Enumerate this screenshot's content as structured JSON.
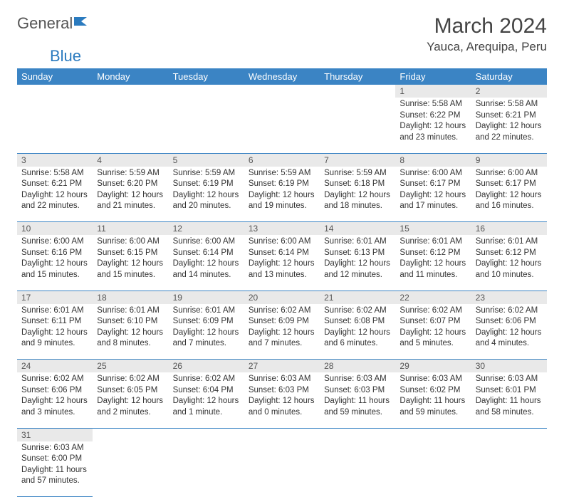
{
  "brand": {
    "part1": "General",
    "part2": "Blue"
  },
  "title": "March 2024",
  "location": "Yauca, Arequipa, Peru",
  "colors": {
    "header_bg": "#3b84c4",
    "header_text": "#ffffff",
    "daynum_bg": "#e9e9e9",
    "row_border": "#3b84c4",
    "logo_blue": "#2b7bbf"
  },
  "weekdays": [
    "Sunday",
    "Monday",
    "Tuesday",
    "Wednesday",
    "Thursday",
    "Friday",
    "Saturday"
  ],
  "weeks": [
    [
      null,
      null,
      null,
      null,
      null,
      {
        "n": "1",
        "sr": "Sunrise: 5:58 AM",
        "ss": "Sunset: 6:22 PM",
        "d1": "Daylight: 12 hours",
        "d2": "and 23 minutes."
      },
      {
        "n": "2",
        "sr": "Sunrise: 5:58 AM",
        "ss": "Sunset: 6:21 PM",
        "d1": "Daylight: 12 hours",
        "d2": "and 22 minutes."
      }
    ],
    [
      {
        "n": "3",
        "sr": "Sunrise: 5:58 AM",
        "ss": "Sunset: 6:21 PM",
        "d1": "Daylight: 12 hours",
        "d2": "and 22 minutes."
      },
      {
        "n": "4",
        "sr": "Sunrise: 5:59 AM",
        "ss": "Sunset: 6:20 PM",
        "d1": "Daylight: 12 hours",
        "d2": "and 21 minutes."
      },
      {
        "n": "5",
        "sr": "Sunrise: 5:59 AM",
        "ss": "Sunset: 6:19 PM",
        "d1": "Daylight: 12 hours",
        "d2": "and 20 minutes."
      },
      {
        "n": "6",
        "sr": "Sunrise: 5:59 AM",
        "ss": "Sunset: 6:19 PM",
        "d1": "Daylight: 12 hours",
        "d2": "and 19 minutes."
      },
      {
        "n": "7",
        "sr": "Sunrise: 5:59 AM",
        "ss": "Sunset: 6:18 PM",
        "d1": "Daylight: 12 hours",
        "d2": "and 18 minutes."
      },
      {
        "n": "8",
        "sr": "Sunrise: 6:00 AM",
        "ss": "Sunset: 6:17 PM",
        "d1": "Daylight: 12 hours",
        "d2": "and 17 minutes."
      },
      {
        "n": "9",
        "sr": "Sunrise: 6:00 AM",
        "ss": "Sunset: 6:17 PM",
        "d1": "Daylight: 12 hours",
        "d2": "and 16 minutes."
      }
    ],
    [
      {
        "n": "10",
        "sr": "Sunrise: 6:00 AM",
        "ss": "Sunset: 6:16 PM",
        "d1": "Daylight: 12 hours",
        "d2": "and 15 minutes."
      },
      {
        "n": "11",
        "sr": "Sunrise: 6:00 AM",
        "ss": "Sunset: 6:15 PM",
        "d1": "Daylight: 12 hours",
        "d2": "and 15 minutes."
      },
      {
        "n": "12",
        "sr": "Sunrise: 6:00 AM",
        "ss": "Sunset: 6:14 PM",
        "d1": "Daylight: 12 hours",
        "d2": "and 14 minutes."
      },
      {
        "n": "13",
        "sr": "Sunrise: 6:00 AM",
        "ss": "Sunset: 6:14 PM",
        "d1": "Daylight: 12 hours",
        "d2": "and 13 minutes."
      },
      {
        "n": "14",
        "sr": "Sunrise: 6:01 AM",
        "ss": "Sunset: 6:13 PM",
        "d1": "Daylight: 12 hours",
        "d2": "and 12 minutes."
      },
      {
        "n": "15",
        "sr": "Sunrise: 6:01 AM",
        "ss": "Sunset: 6:12 PM",
        "d1": "Daylight: 12 hours",
        "d2": "and 11 minutes."
      },
      {
        "n": "16",
        "sr": "Sunrise: 6:01 AM",
        "ss": "Sunset: 6:12 PM",
        "d1": "Daylight: 12 hours",
        "d2": "and 10 minutes."
      }
    ],
    [
      {
        "n": "17",
        "sr": "Sunrise: 6:01 AM",
        "ss": "Sunset: 6:11 PM",
        "d1": "Daylight: 12 hours",
        "d2": "and 9 minutes."
      },
      {
        "n": "18",
        "sr": "Sunrise: 6:01 AM",
        "ss": "Sunset: 6:10 PM",
        "d1": "Daylight: 12 hours",
        "d2": "and 8 minutes."
      },
      {
        "n": "19",
        "sr": "Sunrise: 6:01 AM",
        "ss": "Sunset: 6:09 PM",
        "d1": "Daylight: 12 hours",
        "d2": "and 7 minutes."
      },
      {
        "n": "20",
        "sr": "Sunrise: 6:02 AM",
        "ss": "Sunset: 6:09 PM",
        "d1": "Daylight: 12 hours",
        "d2": "and 7 minutes."
      },
      {
        "n": "21",
        "sr": "Sunrise: 6:02 AM",
        "ss": "Sunset: 6:08 PM",
        "d1": "Daylight: 12 hours",
        "d2": "and 6 minutes."
      },
      {
        "n": "22",
        "sr": "Sunrise: 6:02 AM",
        "ss": "Sunset: 6:07 PM",
        "d1": "Daylight: 12 hours",
        "d2": "and 5 minutes."
      },
      {
        "n": "23",
        "sr": "Sunrise: 6:02 AM",
        "ss": "Sunset: 6:06 PM",
        "d1": "Daylight: 12 hours",
        "d2": "and 4 minutes."
      }
    ],
    [
      {
        "n": "24",
        "sr": "Sunrise: 6:02 AM",
        "ss": "Sunset: 6:06 PM",
        "d1": "Daylight: 12 hours",
        "d2": "and 3 minutes."
      },
      {
        "n": "25",
        "sr": "Sunrise: 6:02 AM",
        "ss": "Sunset: 6:05 PM",
        "d1": "Daylight: 12 hours",
        "d2": "and 2 minutes."
      },
      {
        "n": "26",
        "sr": "Sunrise: 6:02 AM",
        "ss": "Sunset: 6:04 PM",
        "d1": "Daylight: 12 hours",
        "d2": "and 1 minute."
      },
      {
        "n": "27",
        "sr": "Sunrise: 6:03 AM",
        "ss": "Sunset: 6:03 PM",
        "d1": "Daylight: 12 hours",
        "d2": "and 0 minutes."
      },
      {
        "n": "28",
        "sr": "Sunrise: 6:03 AM",
        "ss": "Sunset: 6:03 PM",
        "d1": "Daylight: 11 hours",
        "d2": "and 59 minutes."
      },
      {
        "n": "29",
        "sr": "Sunrise: 6:03 AM",
        "ss": "Sunset: 6:02 PM",
        "d1": "Daylight: 11 hours",
        "d2": "and 59 minutes."
      },
      {
        "n": "30",
        "sr": "Sunrise: 6:03 AM",
        "ss": "Sunset: 6:01 PM",
        "d1": "Daylight: 11 hours",
        "d2": "and 58 minutes."
      }
    ],
    [
      {
        "n": "31",
        "sr": "Sunrise: 6:03 AM",
        "ss": "Sunset: 6:00 PM",
        "d1": "Daylight: 11 hours",
        "d2": "and 57 minutes."
      },
      null,
      null,
      null,
      null,
      null,
      null
    ]
  ]
}
